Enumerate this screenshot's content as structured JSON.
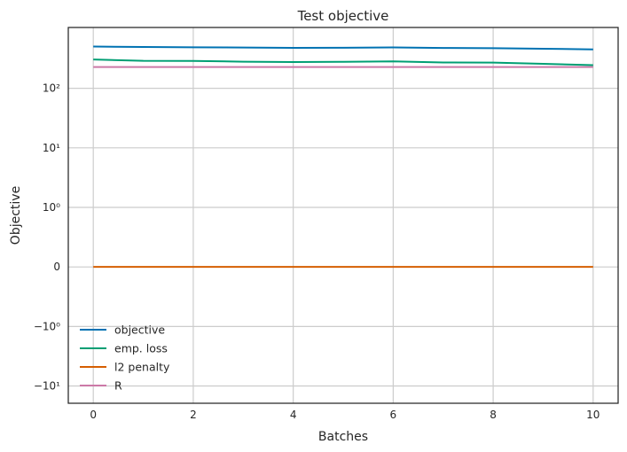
{
  "chart_data": {
    "type": "line",
    "title": "Test objective",
    "xlabel": "Batches",
    "ylabel": "Objective",
    "yscale": "symlog",
    "xlim": [
      -0.5,
      10.5
    ],
    "x": [
      0,
      1,
      2,
      3,
      4,
      5,
      6,
      7,
      8,
      9,
      10
    ],
    "xticks": [
      0,
      2,
      4,
      6,
      8,
      10
    ],
    "xtick_labels": [
      "0",
      "2",
      "4",
      "6",
      "8",
      "10"
    ],
    "yticks": [
      -10,
      -1,
      0,
      1,
      10,
      100
    ],
    "ytick_labels": [
      "−10¹",
      "−10⁰",
      "0",
      "10⁰",
      "10¹",
      "10²"
    ],
    "grid": true,
    "legend_position": "lower-left",
    "series": [
      {
        "name": "objective",
        "color": "#0072B2",
        "values": [
          503,
          495,
          489,
          484,
          479,
          481,
          486,
          477,
          472,
          462,
          451
        ]
      },
      {
        "name": "emp. loss",
        "color": "#009E73",
        "values": [
          305,
          290,
          289,
          280,
          276,
          279,
          284,
          272,
          270,
          258,
          245
        ]
      },
      {
        "name": "l2 penalty",
        "color": "#D55E00",
        "values": [
          0,
          0,
          0,
          0,
          0,
          0,
          0,
          0,
          0,
          0,
          0
        ]
      },
      {
        "name": "R",
        "color": "#CC79A7",
        "values": [
          228,
          228,
          228,
          228,
          228,
          228,
          228,
          228,
          228,
          228,
          228
        ]
      }
    ]
  }
}
